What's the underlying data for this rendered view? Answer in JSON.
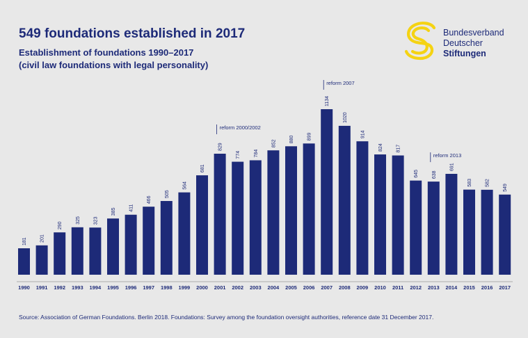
{
  "header": {
    "title": "549 foundations established in 2017",
    "subtitle1": "Establishment of foundations 1990–2017",
    "subtitle2": "(civil law foundations with legal personality)"
  },
  "logo": {
    "line1": "Bundesverband",
    "line2": "Deutscher",
    "line3": "Stiftungen"
  },
  "source": "Source: Association of German Foundations. Berlin 2018. Foundations: Survey among the foundation oversight authorities, reference date 31 December 2017.",
  "colors": {
    "bar": "#1d2a78",
    "text": "#1d2a78",
    "logo_yellow": "#f5d313",
    "background": "#e8e8e8"
  },
  "chart_data": {
    "type": "bar",
    "categories": [
      "1990",
      "1991",
      "1992",
      "1993",
      "1994",
      "1995",
      "1996",
      "1997",
      "1998",
      "1999",
      "2000",
      "2001",
      "2002",
      "2003",
      "2004",
      "2005",
      "2006",
      "2007",
      "2008",
      "2009",
      "2010",
      "2011",
      "2012",
      "2013",
      "2014",
      "2015",
      "2016",
      "2017"
    ],
    "values": [
      181,
      201,
      290,
      325,
      323,
      385,
      411,
      466,
      505,
      564,
      681,
      829,
      774,
      784,
      852,
      880,
      899,
      1134,
      1020,
      914,
      824,
      817,
      645,
      638,
      691,
      583,
      582,
      549
    ],
    "annotations": [
      {
        "label": "reform 2000/2002",
        "category": "2001"
      },
      {
        "label": "reform 2007",
        "category": "2007"
      },
      {
        "label": "reform 2013",
        "category": "2013"
      }
    ],
    "ylim": [
      0,
      1134
    ],
    "grid": false,
    "legend": "none"
  }
}
